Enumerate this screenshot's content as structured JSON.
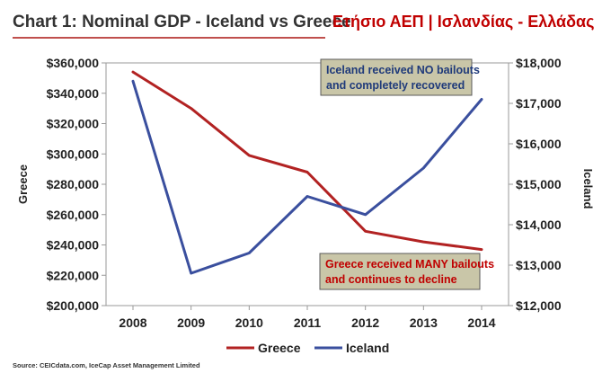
{
  "header": {
    "title": "Chart 1: Nominal GDP - Iceland vs Greece",
    "title_greek": "Ετήσιο ΑΕΠ | Ισλανδίας - Ελλάδας"
  },
  "colors": {
    "greece": "#b22222",
    "iceland": "#3a4f9e",
    "title_underline": "#c0504d",
    "annotation_fill": "#c9c6a8",
    "annotation_border": "#5a5a5a",
    "greek_title": "#c00000"
  },
  "chart_data": {
    "type": "line",
    "x": [
      "2008",
      "2009",
      "2010",
      "2011",
      "2012",
      "2013",
      "2014"
    ],
    "series": [
      {
        "name": "Greece",
        "axis": "left",
        "values": [
          354000,
          330000,
          299000,
          288000,
          249000,
          242000,
          237000
        ]
      },
      {
        "name": "Iceland",
        "axis": "right",
        "values": [
          17550,
          12800,
          13300,
          14700,
          14250,
          15400,
          17100
        ]
      }
    ],
    "ylabel_left": "Greece",
    "ylabel_right": "Iceland",
    "ylim_left": [
      200000,
      360000
    ],
    "ylim_right": [
      12000,
      18000
    ],
    "yticks_left": [
      "$200,000",
      "$220,000",
      "$240,000",
      "$260,000",
      "$280,000",
      "$300,000",
      "$320,000",
      "$340,000",
      "$360,000"
    ],
    "yticks_right": [
      "$12,000",
      "$13,000",
      "$14,000",
      "$15,000",
      "$16,000",
      "$17,000",
      "$18,000"
    ],
    "grid": false,
    "legend_position": "bottom",
    "annotations": [
      {
        "line1": "Iceland received NO bailouts",
        "line2": "and completely recovered",
        "color": "#1f3a7a"
      },
      {
        "line1": "Greece received MANY bailouts",
        "line2": "and continues to decline",
        "color": "#c00000"
      }
    ]
  },
  "source": "Source: CEICdata.com, IceCap Asset Management Limited"
}
